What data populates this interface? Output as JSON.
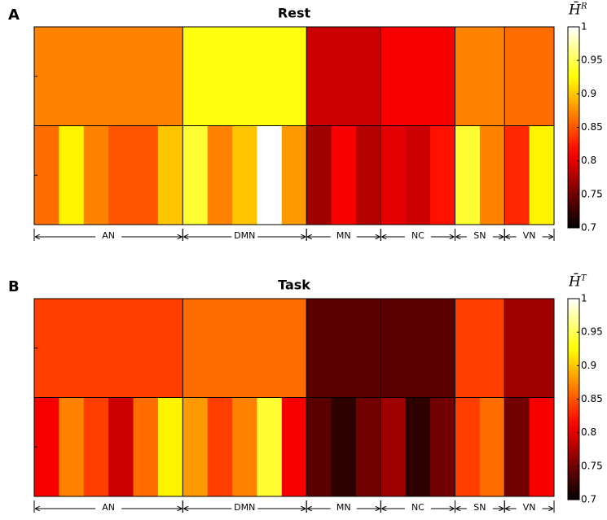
{
  "chart_data": [
    {
      "type": "heatmap",
      "panel_label": "A",
      "title": "Rest",
      "colorbar_label": "H̄",
      "colorbar_superscript": "R",
      "colormap": "hot",
      "clim": [
        0.7,
        1
      ],
      "cticks": [
        0.7,
        0.75,
        0.8,
        0.85,
        0.9,
        0.95,
        1
      ],
      "networks": [
        {
          "name": "AN",
          "value": 0.87,
          "nodes": [
            0.86,
            0.92,
            0.87,
            0.85,
            0.85,
            0.9
          ]
        },
        {
          "name": "DMN",
          "value": 0.93,
          "nodes": [
            0.94,
            0.87,
            0.9,
            1,
            0.88
          ]
        },
        {
          "name": "MN",
          "value": 0.79,
          "nodes": [
            0.77,
            0.81,
            0.78
          ]
        },
        {
          "name": "NC",
          "value": 0.81,
          "nodes": [
            0.8,
            0.79,
            0.82
          ]
        },
        {
          "name": "SN",
          "value": 0.87,
          "nodes": [
            0.94,
            0.87
          ]
        },
        {
          "name": "VN",
          "value": 0.86,
          "nodes": [
            0.83,
            0.92
          ]
        }
      ]
    },
    {
      "type": "heatmap",
      "panel_label": "B",
      "title": "Task",
      "colorbar_label": "H̄",
      "colorbar_superscript": "T",
      "colormap": "hot",
      "clim": [
        0.7,
        1
      ],
      "cticks": [
        0.7,
        0.75,
        0.8,
        0.85,
        0.9,
        0.95,
        1
      ],
      "networks": [
        {
          "name": "AN",
          "value": 0.84,
          "nodes": [
            0.81,
            0.87,
            0.84,
            0.79,
            0.86,
            0.92
          ]
        },
        {
          "name": "DMN",
          "value": 0.86,
          "nodes": [
            0.88,
            0.84,
            0.87,
            0.94,
            0.81
          ]
        },
        {
          "name": "MN",
          "value": 0.74,
          "nodes": [
            0.74,
            0.72,
            0.75
          ]
        },
        {
          "name": "NC",
          "value": 0.74,
          "nodes": [
            0.77,
            0.72,
            0.75
          ]
        },
        {
          "name": "SN",
          "value": 0.84,
          "nodes": [
            0.84,
            0.86
          ]
        },
        {
          "name": "VN",
          "value": 0.77,
          "nodes": [
            0.75,
            0.81
          ]
        }
      ]
    }
  ]
}
